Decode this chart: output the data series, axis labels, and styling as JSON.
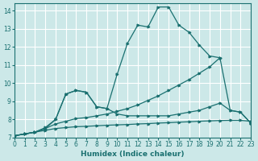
{
  "xlabel": "Humidex (Indice chaleur)",
  "bg_color": "#cce8e8",
  "grid_color": "#ffffff",
  "line_color": "#1a7070",
  "xlim": [
    0,
    23
  ],
  "ylim": [
    7,
    14.4
  ],
  "xticks": [
    0,
    1,
    2,
    3,
    4,
    5,
    6,
    7,
    8,
    9,
    10,
    11,
    12,
    13,
    14,
    15,
    16,
    17,
    18,
    19,
    20,
    21,
    22,
    23
  ],
  "yticks": [
    7,
    8,
    9,
    10,
    11,
    12,
    13,
    14
  ],
  "curve1": {
    "x": [
      0,
      1,
      2,
      3,
      4,
      5,
      6,
      7,
      8,
      9,
      10,
      11,
      12,
      13,
      14,
      15,
      16,
      17,
      18,
      19,
      20,
      21,
      22,
      23
    ],
    "y": [
      7.1,
      7.2,
      7.3,
      7.4,
      7.5,
      7.55,
      7.6,
      7.62,
      7.65,
      7.68,
      7.7,
      7.72,
      7.75,
      7.77,
      7.8,
      7.82,
      7.85,
      7.87,
      7.9,
      7.92,
      7.94,
      7.95,
      7.95,
      7.9
    ]
  },
  "curve2": {
    "x": [
      0,
      1,
      2,
      3,
      4,
      5,
      6,
      7,
      8,
      9,
      10,
      11,
      12,
      13,
      14,
      15,
      16,
      17,
      18,
      19,
      20,
      21,
      22,
      23
    ],
    "y": [
      7.1,
      7.2,
      7.3,
      7.5,
      8.0,
      9.4,
      9.6,
      9.5,
      8.7,
      8.6,
      8.3,
      8.2,
      8.2,
      8.2,
      8.2,
      8.2,
      8.3,
      8.4,
      8.5,
      8.7,
      8.9,
      8.5,
      8.4,
      7.8
    ]
  },
  "curve3": {
    "x": [
      0,
      1,
      2,
      3,
      4,
      5,
      6,
      7,
      8,
      9,
      10,
      11,
      12,
      13,
      14,
      15,
      16,
      17,
      18,
      19,
      20
    ],
    "y": [
      7.1,
      7.2,
      7.3,
      7.55,
      8.0,
      9.4,
      9.6,
      9.5,
      8.7,
      8.6,
      10.5,
      12.2,
      13.2,
      13.1,
      14.2,
      14.2,
      13.2,
      12.8,
      12.1,
      11.5,
      11.4
    ]
  },
  "curve4": {
    "x": [
      0,
      1,
      2,
      3,
      4,
      5,
      6,
      7,
      8,
      9,
      10,
      11,
      12,
      13,
      14,
      15,
      16,
      17,
      18,
      19,
      20,
      21,
      22,
      23
    ],
    "y": [
      7.1,
      7.2,
      7.3,
      7.5,
      7.75,
      7.9,
      8.05,
      8.1,
      8.2,
      8.3,
      8.45,
      8.6,
      8.8,
      9.05,
      9.3,
      9.6,
      9.9,
      10.2,
      10.55,
      10.9,
      11.4,
      8.5,
      8.4,
      7.8
    ]
  }
}
